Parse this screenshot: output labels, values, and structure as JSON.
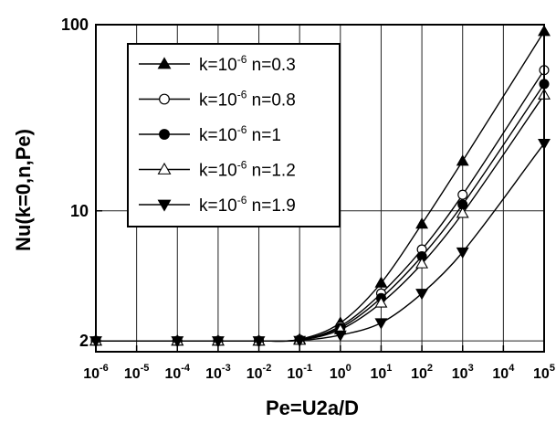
{
  "chart_data": {
    "type": "line",
    "title": "",
    "xlabel": "Pe=U2a/D",
    "ylabel": "Nu(k=0,n,Pe)",
    "xscale": "log",
    "yscale": "log",
    "xlim": [
      1e-06,
      100000.0
    ],
    "ylim": [
      1.75,
      100
    ],
    "x_tick_exponents": [
      "-6",
      "-5",
      "-4",
      "-3",
      "-2",
      "-1",
      "0",
      "1",
      "2",
      "3",
      "4",
      "5"
    ],
    "x_tick_base": "10",
    "y_ticks": [
      "2",
      "10",
      "100"
    ],
    "grid": true,
    "legend_position": "top-left",
    "marker_x": [
      1e-06,
      0.0001,
      0.001,
      0.01,
      0.1,
      1,
      10,
      100,
      1000,
      100000
    ],
    "series": [
      {
        "name": "k=10-6 n=0.3",
        "legend_prefix": "k=10",
        "legend_exp": "-6",
        "legend_suffix": " n=0.3",
        "marker": "triangle-up",
        "filled": true,
        "values": [
          2,
          2,
          2,
          2,
          2.04,
          2.5,
          4.1,
          8.5,
          18.5,
          92
        ]
      },
      {
        "name": "k=10-6 n=0.8",
        "legend_prefix": "k=10",
        "legend_exp": "-6",
        "legend_suffix": " n=0.8",
        "marker": "circle",
        "filled": false,
        "values": [
          2,
          2,
          2,
          2,
          2.03,
          2.4,
          3.6,
          6.2,
          12.2,
          57
        ]
      },
      {
        "name": "k=10-6 n=1",
        "legend_prefix": "k=10",
        "legend_exp": "-6",
        "legend_suffix": " n=1",
        "marker": "circle",
        "filled": true,
        "values": [
          2,
          2,
          2,
          2,
          2.03,
          2.35,
          3.4,
          5.7,
          10.8,
          48
        ]
      },
      {
        "name": "k=10-6 n=1.2",
        "legend_prefix": "k=10",
        "legend_exp": "-6",
        "legend_suffix": " n=1.2",
        "marker": "triangle-up",
        "filled": false,
        "values": [
          2,
          2,
          2,
          2,
          2.02,
          2.3,
          3.2,
          5.2,
          9.7,
          42
        ]
      },
      {
        "name": "k=10-6 n=1.9",
        "legend_prefix": "k=10",
        "legend_exp": "-6",
        "legend_suffix": " n=1.9",
        "marker": "triangle-down",
        "filled": true,
        "values": [
          2,
          2,
          2,
          2,
          2.01,
          2.15,
          2.5,
          3.6,
          6.0,
          23
        ]
      }
    ]
  }
}
